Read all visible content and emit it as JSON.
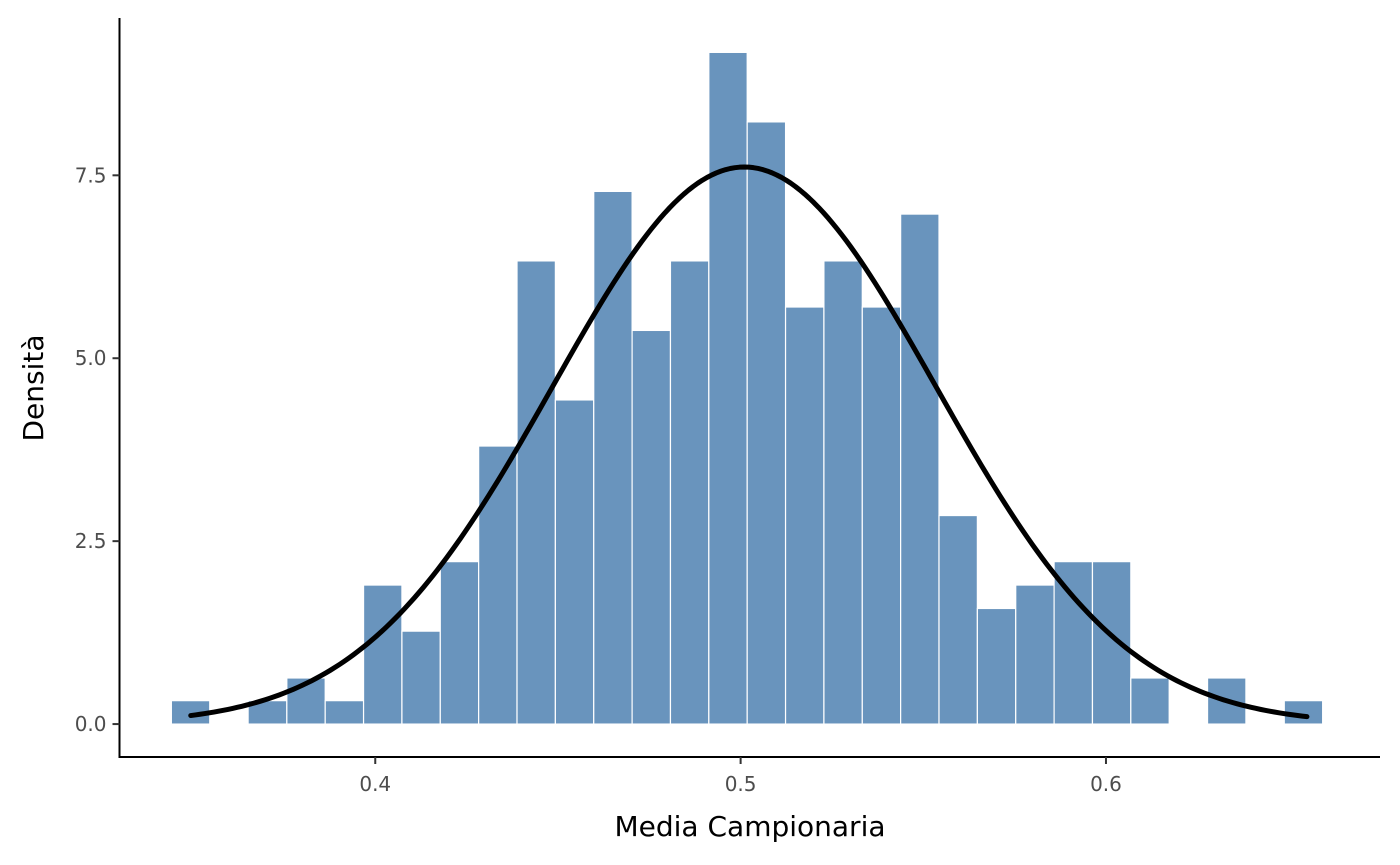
{
  "chart_data": {
    "type": "bar",
    "subtype": "histogram-with-density-curve",
    "xlabel": "Media Campionaria",
    "ylabel": "Densità",
    "xlim": [
      0.33,
      0.675
    ],
    "ylim": [
      -0.45,
      9.65
    ],
    "x_ticks": [
      0.4,
      0.5,
      0.6
    ],
    "x_tick_labels": [
      "0.4",
      "0.5",
      "0.6"
    ],
    "y_ticks": [
      0.0,
      2.5,
      5.0,
      7.5
    ],
    "y_tick_labels": [
      "0.0",
      "2.5",
      "5.0",
      "7.5"
    ],
    "grid": false,
    "legend": "none",
    "bar_color": "#6994bd",
    "bar_edge_color": "#ffffff",
    "curve_color": "#000000",
    "bins": [
      {
        "start": 0.3442,
        "end": 0.3547,
        "density": 0.32
      },
      {
        "start": 0.3547,
        "end": 0.3652,
        "density": 0.0
      },
      {
        "start": 0.3652,
        "end": 0.3758,
        "density": 0.32
      },
      {
        "start": 0.3758,
        "end": 0.3863,
        "density": 0.63
      },
      {
        "start": 0.3863,
        "end": 0.3968,
        "density": 0.32
      },
      {
        "start": 0.3968,
        "end": 0.4073,
        "density": 1.9
      },
      {
        "start": 0.4073,
        "end": 0.4178,
        "density": 1.27
      },
      {
        "start": 0.4178,
        "end": 0.4283,
        "density": 2.22
      },
      {
        "start": 0.4283,
        "end": 0.4388,
        "density": 3.8
      },
      {
        "start": 0.4388,
        "end": 0.4493,
        "density": 6.33
      },
      {
        "start": 0.4493,
        "end": 0.4598,
        "density": 4.43
      },
      {
        "start": 0.4598,
        "end": 0.4703,
        "density": 7.28
      },
      {
        "start": 0.4703,
        "end": 0.4808,
        "density": 5.38
      },
      {
        "start": 0.4808,
        "end": 0.4913,
        "density": 6.33
      },
      {
        "start": 0.4913,
        "end": 0.5018,
        "density": 9.18
      },
      {
        "start": 0.5018,
        "end": 0.5123,
        "density": 8.23
      },
      {
        "start": 0.5123,
        "end": 0.5228,
        "density": 5.7
      },
      {
        "start": 0.5228,
        "end": 0.5333,
        "density": 6.33
      },
      {
        "start": 0.5333,
        "end": 0.5438,
        "density": 5.7
      },
      {
        "start": 0.5438,
        "end": 0.5543,
        "density": 6.97
      },
      {
        "start": 0.5543,
        "end": 0.5648,
        "density": 2.85
      },
      {
        "start": 0.5648,
        "end": 0.5753,
        "density": 1.58
      },
      {
        "start": 0.5753,
        "end": 0.5858,
        "density": 1.9
      },
      {
        "start": 0.5858,
        "end": 0.5963,
        "density": 2.22
      },
      {
        "start": 0.5963,
        "end": 0.6068,
        "density": 2.22
      },
      {
        "start": 0.6068,
        "end": 0.6173,
        "density": 0.63
      },
      {
        "start": 0.6173,
        "end": 0.6278,
        "density": 0.0
      },
      {
        "start": 0.6278,
        "end": 0.6383,
        "density": 0.63
      },
      {
        "start": 0.6383,
        "end": 0.6488,
        "density": 0.0
      },
      {
        "start": 0.6488,
        "end": 0.6593,
        "density": 0.32
      }
    ],
    "density_curve": {
      "distribution": "normal",
      "mean": 0.501,
      "sd": 0.0524,
      "x_range": [
        0.3495,
        0.655
      ]
    }
  }
}
